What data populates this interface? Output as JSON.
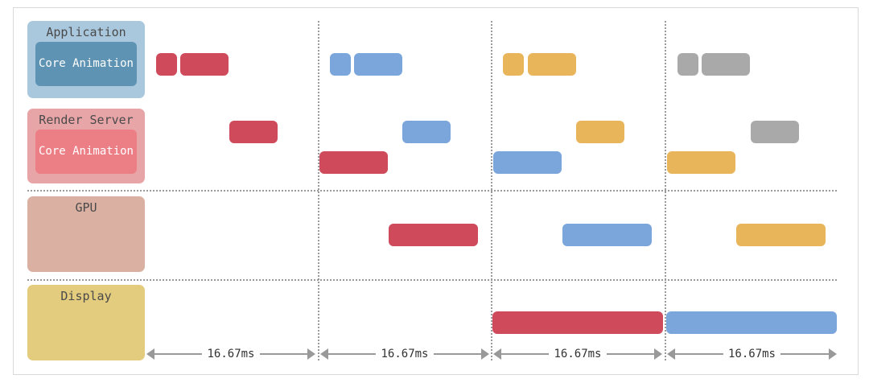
{
  "lanes": {
    "application": {
      "label": "Application",
      "inner_label": "Core Animation",
      "color": "#a9c8de",
      "inner_color": "#5e93b3"
    },
    "render_server": {
      "label": "Render Server",
      "inner_label": "Core Animation",
      "color": "#e8a5a8",
      "inner_color": "#ec7f86"
    },
    "gpu": {
      "label": "GPU",
      "color": "#d9b0a1"
    },
    "display": {
      "label": "Display",
      "color": "#e4cc7e"
    }
  },
  "frame_colors": {
    "frame1": "#cf4b5c",
    "frame2": "#7aa6dc",
    "frame3": "#e8b55a",
    "frame4": "#a9a9a9"
  },
  "intervals": [
    "16.67ms",
    "16.67ms",
    "16.67ms",
    "16.67ms"
  ],
  "icons": {
    "arrow_left": "arrow-left-icon",
    "arrow_right": "arrow-right-icon"
  }
}
